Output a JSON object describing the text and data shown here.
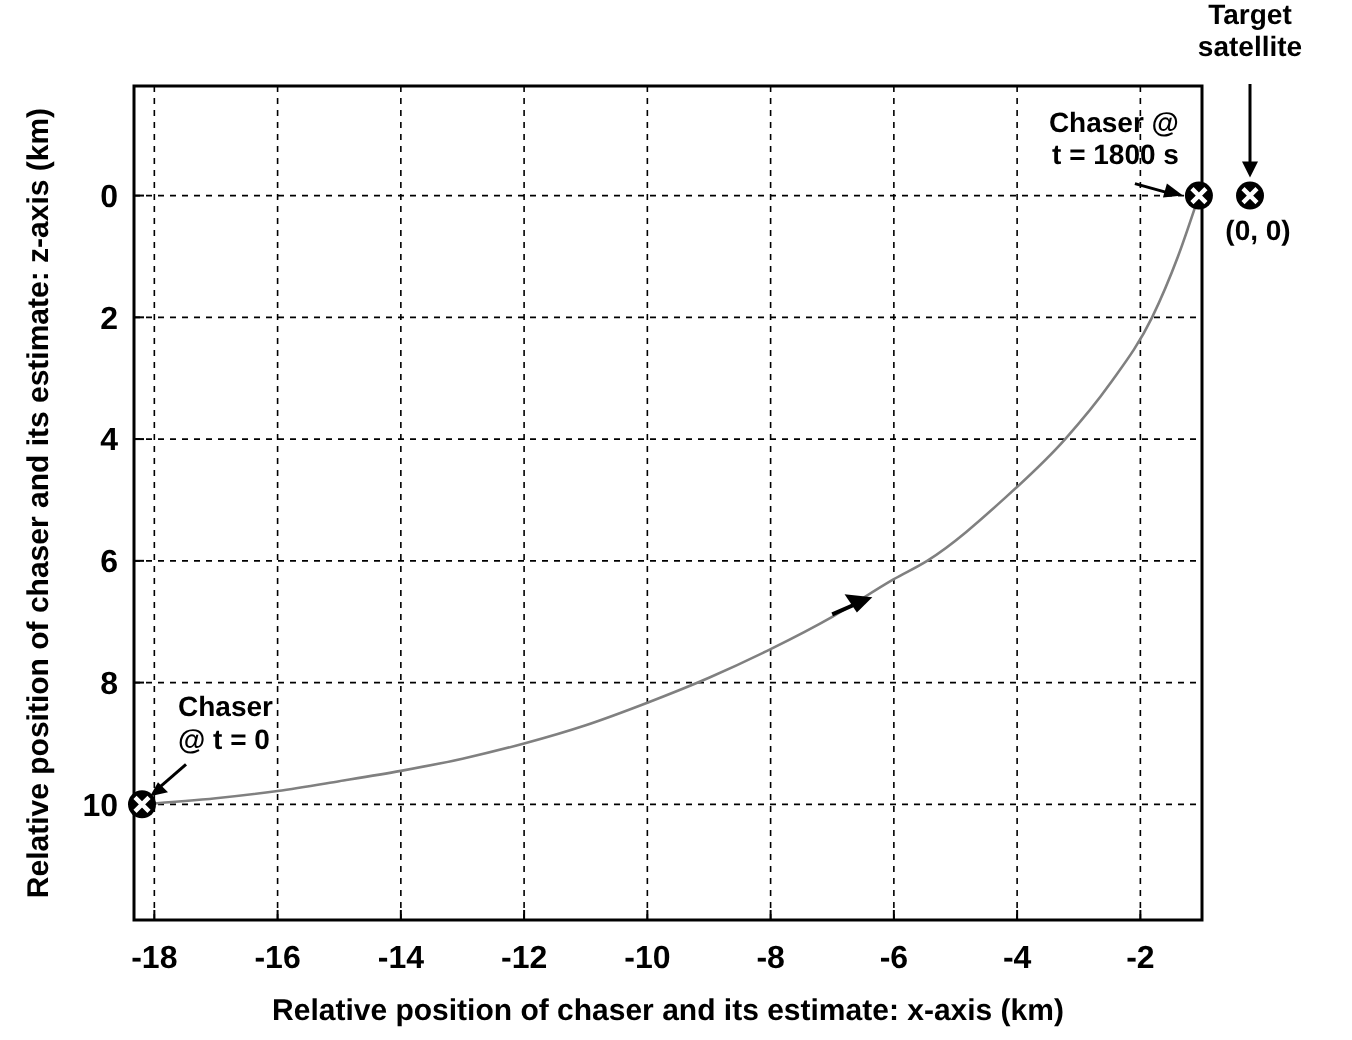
{
  "chart_data": {
    "type": "line",
    "xlabel": "Relative position of chaser and its estimate: x-axis (km)",
    "ylabel": "Relative position of chaser and its estimate: z-axis (km)",
    "xlim": [
      -18.33,
      -1
    ],
    "ylim": [
      11.9,
      -1.8
    ],
    "xticks": [
      -18,
      -16,
      -14,
      -12,
      -10,
      -8,
      -6,
      -4,
      -2
    ],
    "yticks": [
      0,
      2,
      4,
      6,
      8,
      10
    ],
    "grid": true,
    "series": [
      {
        "color": "#808080",
        "line_style": "solid",
        "marker": "none",
        "x": [
          -18.2,
          -17,
          -16,
          -15,
          -14,
          -13,
          -12,
          -11,
          -10,
          -9,
          -8,
          -7,
          -6,
          -5.46,
          -4.2,
          -3.22,
          -2.5,
          -1.81,
          -1.39,
          -1.05
        ],
        "values": [
          10,
          9.9,
          9.78,
          9.62,
          9.45,
          9.25,
          9.0,
          8.7,
          8.33,
          7.92,
          7.45,
          6.92,
          6.3,
          6,
          4.97,
          4,
          3.1,
          2,
          1,
          0
        ]
      },
      {
        "type": "scatter",
        "color": "#000000",
        "marker": "circle",
        "x": [
          -18.2,
          -1.05
        ],
        "values": [
          10,
          0
        ]
      }
    ],
    "annotations": [
      {
        "text": "Chaser\n@ t = 0",
        "x": -18.2,
        "y": 10
      },
      {
        "text": "Chaser @\nt = 1800 s",
        "x": -1.05,
        "y": 0
      },
      "Target\nsatellite",
      "(0, 0)"
    ]
  }
}
